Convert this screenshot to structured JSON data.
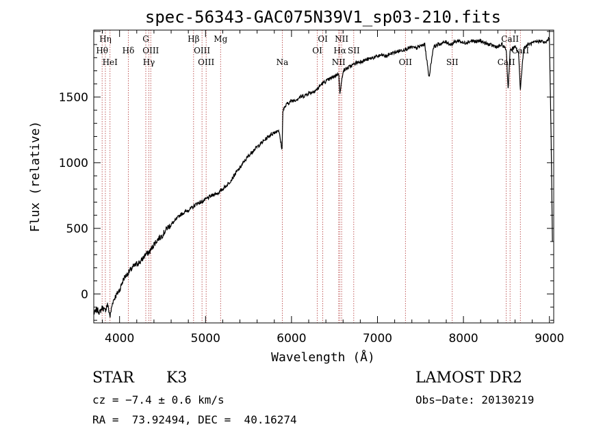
{
  "chart_data": {
    "type": "line",
    "title": "spec-56343-GAC075N39V1_sp03-210.fits",
    "xlabel": "Wavelength (Å)",
    "ylabel": "Flux (relative)",
    "xlim": [
      3700,
      9050
    ],
    "ylim": [
      -220,
      2010
    ],
    "xticks": [
      4000,
      5000,
      6000,
      7000,
      8000,
      9000
    ],
    "yticks": [
      0,
      500,
      1000,
      1500
    ],
    "grid": false,
    "series": [
      {
        "x": [
          3700,
          3740,
          3770,
          3800,
          3830,
          3860,
          3890,
          3920,
          3950,
          4000,
          4050,
          4100,
          4150,
          4200,
          4250,
          4300,
          4350,
          4400,
          4450,
          4500,
          4550,
          4600,
          4650,
          4700,
          4750,
          4800,
          4850,
          4900,
          4950,
          5000,
          5050,
          5100,
          5150,
          5200,
          5250,
          5300,
          5350,
          5400,
          5450,
          5500,
          5550,
          5600,
          5650,
          5700,
          5750,
          5800,
          5850,
          5890,
          5900,
          5950,
          6000,
          6050,
          6100,
          6150,
          6200,
          6250,
          6300,
          6350,
          6400,
          6450,
          6500,
          6550,
          6563,
          6600,
          6650,
          6700,
          6750,
          6800,
          6850,
          6900,
          6950,
          7000,
          7050,
          7100,
          7150,
          7200,
          7250,
          7300,
          7350,
          7400,
          7450,
          7500,
          7550,
          7600,
          7650,
          7700,
          7750,
          7800,
          7850,
          7900,
          7950,
          8000,
          8050,
          8100,
          8150,
          8200,
          8250,
          8300,
          8350,
          8400,
          8450,
          8498,
          8520,
          8542,
          8570,
          8600,
          8640,
          8662,
          8700,
          8750,
          8800,
          8850,
          8900,
          8950,
          9000,
          9020,
          9035
        ],
        "y": [
          -150,
          -120,
          -140,
          -100,
          -130,
          -80,
          -170,
          -60,
          -20,
          30,
          120,
          160,
          200,
          230,
          250,
          300,
          320,
          380,
          420,
          450,
          500,
          530,
          560,
          600,
          620,
          640,
          660,
          690,
          700,
          720,
          740,
          760,
          770,
          800,
          830,
          870,
          920,
          960,
          1010,
          1050,
          1090,
          1120,
          1150,
          1180,
          1210,
          1230,
          1250,
          1100,
          1400,
          1450,
          1470,
          1480,
          1500,
          1510,
          1530,
          1540,
          1560,
          1600,
          1620,
          1640,
          1660,
          1680,
          1520,
          1700,
          1720,
          1740,
          1760,
          1770,
          1780,
          1790,
          1800,
          1810,
          1820,
          1810,
          1830,
          1840,
          1850,
          1860,
          1870,
          1880,
          1870,
          1890,
          1900,
          1650,
          1880,
          1900,
          1910,
          1920,
          1900,
          1920,
          1930,
          1910,
          1920,
          1930,
          1920,
          1930,
          1910,
          1900,
          1890,
          1880,
          1900,
          1860,
          1560,
          1850,
          1870,
          1880,
          1840,
          1560,
          1870,
          1900,
          1910,
          1920,
          1930,
          1910,
          1950,
          1200,
          400
        ]
      }
    ],
    "line_markers": [
      {
        "label": "Hη",
        "x": 3835,
        "row": 0
      },
      {
        "label": "Hθ",
        "x": 3797,
        "row": 1
      },
      {
        "label": "HeI",
        "x": 3889,
        "row": 2
      },
      {
        "label": "Hδ",
        "x": 4102,
        "row": 1
      },
      {
        "label": "G",
        "x": 4305,
        "row": 0
      },
      {
        "label": "OIII",
        "x": 4363,
        "row": 1
      },
      {
        "label": "Hγ",
        "x": 4341,
        "row": 2
      },
      {
        "label": "Hβ",
        "x": 4861,
        "row": 0
      },
      {
        "label": "OIII",
        "x": 4959,
        "row": 1
      },
      {
        "label": "OIII",
        "x": 5007,
        "row": 2
      },
      {
        "label": "Mg",
        "x": 5175,
        "row": 0
      },
      {
        "label": "Na",
        "x": 5893,
        "row": 2
      },
      {
        "label": "OI",
        "x": 6364,
        "row": 0
      },
      {
        "label": "OI",
        "x": 6300,
        "row": 1
      },
      {
        "label": "NII",
        "x": 6583,
        "row": 0
      },
      {
        "label": "Hα",
        "x": 6563,
        "row": 1
      },
      {
        "label": "NII",
        "x": 6548,
        "row": 2
      },
      {
        "label": "SII",
        "x": 6724,
        "row": 1
      },
      {
        "label": "OII",
        "x": 7325,
        "row": 2
      },
      {
        "label": "SII",
        "x": 7870,
        "row": 2
      },
      {
        "label": "CaII",
        "x": 8542,
        "row": 0
      },
      {
        "label": "CaII",
        "x": 8662,
        "row": 1
      },
      {
        "label": "CaII",
        "x": 8498,
        "row": 2
      }
    ]
  },
  "info": {
    "object_class": "STAR",
    "subclass": "K3",
    "survey": "LAMOST DR2",
    "cz": "cz = −7.4 ± 0.6 km/s",
    "obs_date": "Obs−Date: 20130219",
    "coords": "RA =  73.92494, DEC =  40.16274"
  }
}
